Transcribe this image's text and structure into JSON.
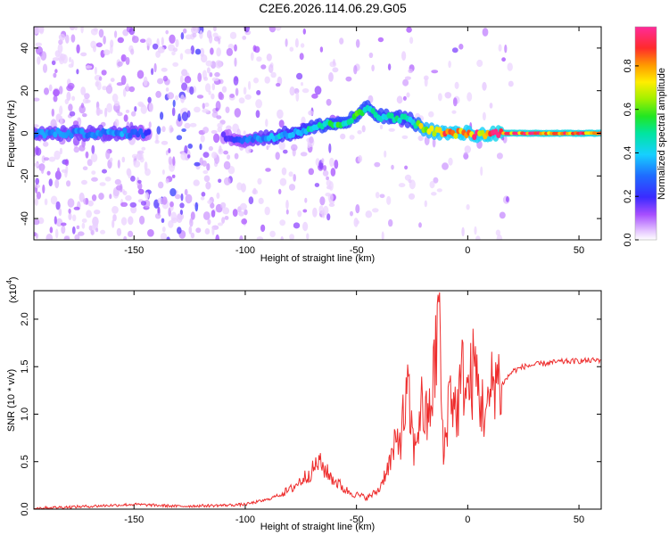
{
  "title": "C2E6.2026.114.06.29.G05",
  "colors": {
    "snr_line": "#ee2d2d",
    "frame": "#000000"
  },
  "chart_data": [
    {
      "type": "heatmap",
      "xlabel": "Height of straight line (km)",
      "ylabel": "Frequency (Hz)",
      "xlim": [
        -195,
        60
      ],
      "ylim": [
        -50,
        50
      ],
      "xticks": [
        -150,
        -100,
        -50,
        0,
        50
      ],
      "yticks": [
        -40,
        -20,
        0,
        20,
        40
      ],
      "grid": false,
      "colorbar": {
        "label": "Normalized spectral amplitude",
        "range": [
          0.0,
          0.98
        ],
        "ticks": [
          0.0,
          0.2,
          0.4,
          0.6,
          0.8
        ],
        "colormap": "rainbow (white-violet-blue-cyan-green-yellow-red-magenta)"
      },
      "ridge": {
        "description": "dominant frequency vs height",
        "x": [
          -195,
          -170,
          -150,
          -140,
          -120,
          -100,
          -90,
          -75,
          -65,
          -55,
          -50,
          -45,
          -40,
          -30,
          -25,
          -20,
          -15,
          -10,
          -5,
          0,
          5,
          10,
          15,
          20,
          30,
          40,
          50,
          60
        ],
        "y": [
          0,
          0,
          0,
          0,
          0,
          -3,
          -2,
          1,
          4,
          5,
          8,
          12,
          8,
          7,
          6,
          2,
          1,
          0,
          0,
          0,
          -1,
          0,
          0,
          0,
          0,
          0,
          0,
          0
        ],
        "amplitude": [
          0.35,
          0.35,
          0.35,
          0.15,
          0.1,
          0.3,
          0.4,
          0.45,
          0.55,
          0.55,
          0.6,
          0.55,
          0.55,
          0.5,
          0.5,
          0.8,
          0.85,
          0.88,
          0.9,
          0.9,
          0.9,
          0.92,
          0.95,
          0.95,
          0.95,
          0.95,
          0.95,
          0.95
        ]
      }
    },
    {
      "type": "line",
      "xlabel": "Height of straight line (km)",
      "ylabel": "SNR (10 * v/v)",
      "yscale_note": "(x10",
      "yscale_exponent": "4",
      "xlim": [
        -195,
        60
      ],
      "ylim": [
        0,
        2.3
      ],
      "xticks": [
        -150,
        -100,
        -50,
        0,
        50
      ],
      "yticks": [
        0.0,
        0.5,
        1.0,
        1.5,
        2.0
      ],
      "ytick_labels": [
        "0.0",
        "0.5",
        "1.0",
        "1.5",
        "2.0"
      ],
      "grid": false,
      "series": [
        {
          "x": [
            -195,
            -170,
            -150,
            -130,
            -110,
            -100,
            -90,
            -80,
            -75,
            -70,
            -67,
            -62,
            -55,
            -50,
            -45,
            -40,
            -35,
            -30,
            -27,
            -24,
            -21,
            -18,
            -15,
            -13,
            -11,
            -8,
            -5,
            -2,
            0,
            3,
            6,
            9,
            12,
            15,
            20,
            25,
            30,
            40,
            50,
            60
          ],
          "y": [
            0.01,
            0.03,
            0.05,
            0.03,
            0.04,
            0.05,
            0.1,
            0.2,
            0.3,
            0.4,
            0.5,
            0.35,
            0.2,
            0.15,
            0.12,
            0.2,
            0.5,
            0.8,
            1.2,
            0.6,
            1.1,
            0.9,
            1.4,
            2.2,
            0.5,
            1.3,
            1.0,
            1.45,
            1.2,
            1.5,
            1.1,
            1.0,
            1.45,
            1.3,
            1.45,
            1.5,
            1.52,
            1.55,
            1.56,
            1.57
          ]
        }
      ]
    }
  ]
}
